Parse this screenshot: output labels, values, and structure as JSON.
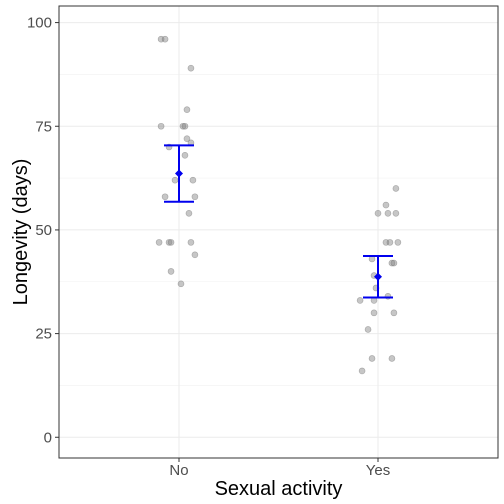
{
  "chart_data": {
    "type": "scatter",
    "xlabel": "Sexual activity",
    "ylabel": "Longevity (days)",
    "categories": [
      "No",
      "Yes"
    ],
    "y_ticks": [
      0,
      25,
      50,
      75,
      100
    ],
    "y_tick_labels": [
      "0",
      "25",
      "50",
      "75",
      "100"
    ],
    "ylim": [
      -5,
      104
    ],
    "grid": true,
    "legend": "none",
    "colors": {
      "points": "#808080",
      "summary": "#0000ee",
      "panel_border": "#333333",
      "grid": "#ebebeb"
    },
    "points": [
      {
        "group": "No",
        "jitter": -0.09,
        "y": 96
      },
      {
        "group": "No",
        "jitter": -0.07,
        "y": 96
      },
      {
        "group": "No",
        "jitter": 0.06,
        "y": 89
      },
      {
        "group": "No",
        "jitter": 0.04,
        "y": 79
      },
      {
        "group": "No",
        "jitter": -0.09,
        "y": 75
      },
      {
        "group": "No",
        "jitter": 0.02,
        "y": 75
      },
      {
        "group": "No",
        "jitter": 0.03,
        "y": 75
      },
      {
        "group": "No",
        "jitter": 0.04,
        "y": 72
      },
      {
        "group": "No",
        "jitter": 0.06,
        "y": 71
      },
      {
        "group": "No",
        "jitter": -0.05,
        "y": 70
      },
      {
        "group": "No",
        "jitter": 0.03,
        "y": 68
      },
      {
        "group": "No",
        "jitter": -0.02,
        "y": 62
      },
      {
        "group": "No",
        "jitter": 0.07,
        "y": 62
      },
      {
        "group": "No",
        "jitter": -0.07,
        "y": 58
      },
      {
        "group": "No",
        "jitter": 0.08,
        "y": 58
      },
      {
        "group": "No",
        "jitter": 0.05,
        "y": 54
      },
      {
        "group": "No",
        "jitter": -0.1,
        "y": 47
      },
      {
        "group": "No",
        "jitter": -0.05,
        "y": 47
      },
      {
        "group": "No",
        "jitter": -0.04,
        "y": 47
      },
      {
        "group": "No",
        "jitter": 0.06,
        "y": 47
      },
      {
        "group": "No",
        "jitter": 0.08,
        "y": 44
      },
      {
        "group": "No",
        "jitter": -0.04,
        "y": 40
      },
      {
        "group": "No",
        "jitter": 0.01,
        "y": 37
      },
      {
        "group": "Yes",
        "jitter": 0.09,
        "y": 60
      },
      {
        "group": "Yes",
        "jitter": 0.04,
        "y": 56
      },
      {
        "group": "Yes",
        "jitter": 0.0,
        "y": 54
      },
      {
        "group": "Yes",
        "jitter": 0.05,
        "y": 54
      },
      {
        "group": "Yes",
        "jitter": 0.09,
        "y": 54
      },
      {
        "group": "Yes",
        "jitter": 0.04,
        "y": 47
      },
      {
        "group": "Yes",
        "jitter": 0.06,
        "y": 47
      },
      {
        "group": "Yes",
        "jitter": 0.1,
        "y": 47
      },
      {
        "group": "Yes",
        "jitter": -0.03,
        "y": 43
      },
      {
        "group": "Yes",
        "jitter": 0.07,
        "y": 42
      },
      {
        "group": "Yes",
        "jitter": 0.08,
        "y": 42
      },
      {
        "group": "Yes",
        "jitter": -0.02,
        "y": 39
      },
      {
        "group": "Yes",
        "jitter": -0.01,
        "y": 36
      },
      {
        "group": "Yes",
        "jitter": -0.09,
        "y": 33
      },
      {
        "group": "Yes",
        "jitter": -0.02,
        "y": 33
      },
      {
        "group": "Yes",
        "jitter": 0.05,
        "y": 34
      },
      {
        "group": "Yes",
        "jitter": -0.02,
        "y": 30
      },
      {
        "group": "Yes",
        "jitter": 0.08,
        "y": 30
      },
      {
        "group": "Yes",
        "jitter": -0.05,
        "y": 26
      },
      {
        "group": "Yes",
        "jitter": -0.03,
        "y": 19
      },
      {
        "group": "Yes",
        "jitter": 0.07,
        "y": 19
      },
      {
        "group": "Yes",
        "jitter": -0.08,
        "y": 16
      }
    ],
    "summaries": [
      {
        "group": "No",
        "mean": 63.6,
        "lower": 56.8,
        "upper": 70.4
      },
      {
        "group": "Yes",
        "mean": 38.7,
        "lower": 33.7,
        "upper": 43.7
      }
    ]
  }
}
